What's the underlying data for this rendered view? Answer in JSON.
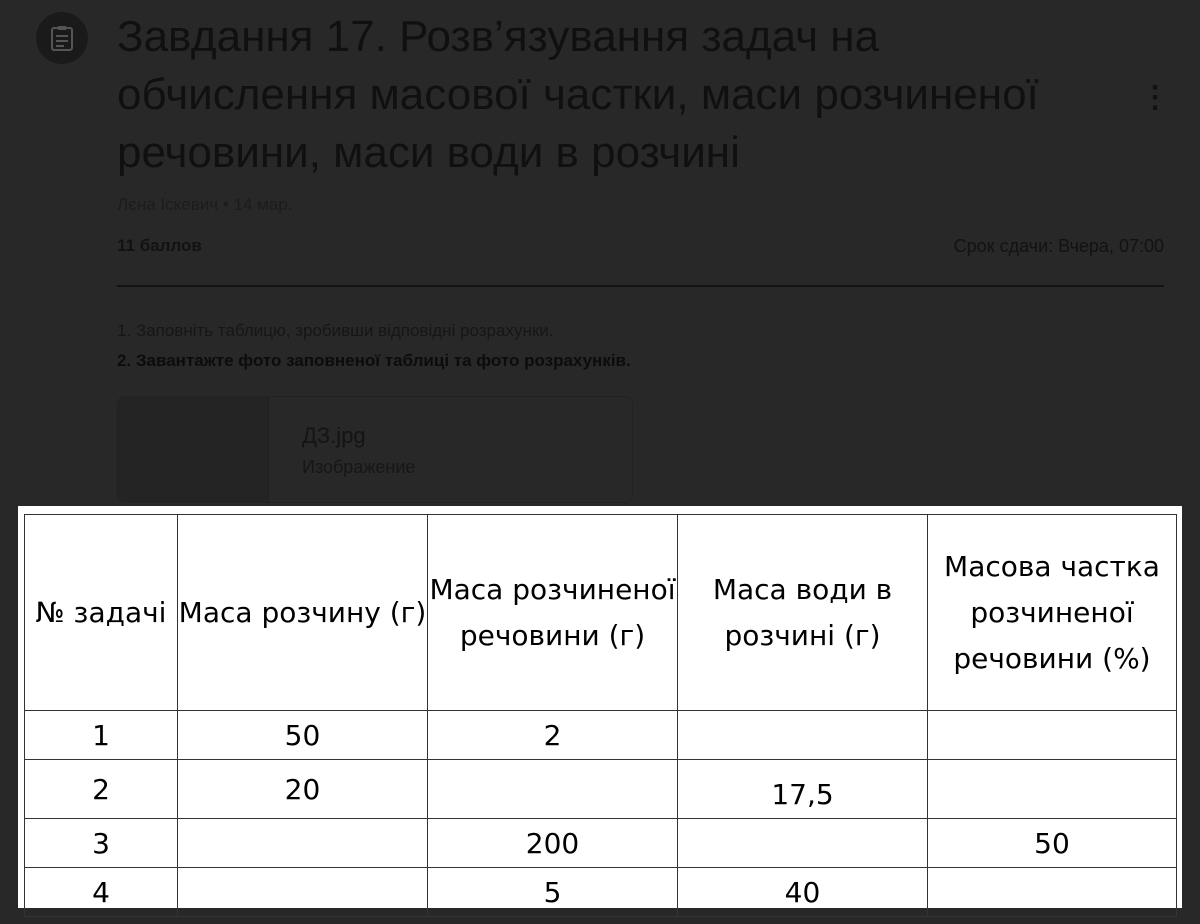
{
  "assignment": {
    "title": "Завдання 17. Розв’язування задач на обчислення масової частки, маси розчиненої речовини, маси води в розчині",
    "author_date": "Лєна Іскевич • 14 мар.",
    "points": "11 баллов",
    "due": "Срок сдачи: Вчера, 07:00",
    "instructions": [
      "1. Заповніть таблицю, зробивши відповідні розрахунки.",
      "2. Завантажте фото заповненої таблиці та фото розрахунків."
    ],
    "attachment": {
      "name": "ДЗ.jpg",
      "type": "Изображение"
    }
  },
  "table": {
    "headers": [
      "№ задачі",
      "Маса розчину (г)",
      "Маса розчиненої речовини (г)",
      "Маса води в розчині (г)",
      "Масова частка розчиненої речовини (%)"
    ],
    "rows": [
      [
        "1",
        "50",
        "2",
        "",
        ""
      ],
      [
        "2",
        "20",
        "",
        "17,5",
        ""
      ],
      [
        "3",
        "",
        "200",
        "",
        "50"
      ],
      [
        "4",
        "",
        "5",
        "40",
        ""
      ]
    ]
  }
}
